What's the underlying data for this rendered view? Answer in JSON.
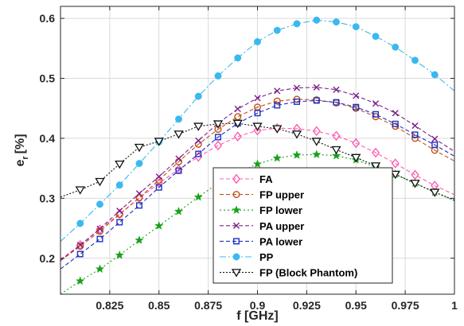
{
  "chart_data": {
    "type": "line",
    "xlabel": "f [GHz]",
    "ylabel": "e",
    "ylabel_sub": "r",
    "ylabel_unit": "[%]",
    "xlim": [
      0.8,
      1.0
    ],
    "ylim": [
      0.14,
      0.62
    ],
    "xticks": [
      0.825,
      0.85,
      0.875,
      0.9,
      0.925,
      0.95,
      0.975,
      1.0
    ],
    "xtick_labels": [
      "0.825",
      "0.85",
      "0.875",
      "0.9",
      "0.925",
      "0.95",
      "0.975",
      "1"
    ],
    "yticks": [
      0.2,
      0.3,
      0.4,
      0.5,
      0.6
    ],
    "ytick_labels": [
      "0.2",
      "0.3",
      "0.4",
      "0.5",
      "0.6"
    ],
    "grid": true,
    "legend_position": "bottom-right",
    "x": [
      0.8,
      0.81,
      0.82,
      0.83,
      0.84,
      0.85,
      0.86,
      0.87,
      0.88,
      0.89,
      0.9,
      0.91,
      0.92,
      0.93,
      0.94,
      0.95,
      0.96,
      0.97,
      0.98,
      0.99,
      1.0
    ],
    "series": [
      {
        "name": "FA",
        "color": "#ff5fb0",
        "dash": "5,3",
        "marker": "diamond",
        "values": [
          0.198,
          0.222,
          0.248,
          0.274,
          0.3,
          0.325,
          0.348,
          0.369,
          0.388,
          0.403,
          0.413,
          0.417,
          0.416,
          0.412,
          0.404,
          0.392,
          0.376,
          0.358,
          0.339,
          0.321,
          0.306
        ]
      },
      {
        "name": "FP upper",
        "color": "#c0501a",
        "dash": "5,3",
        "marker": "circle",
        "values": [
          0.196,
          0.22,
          0.245,
          0.273,
          0.301,
          0.33,
          0.361,
          0.39,
          0.415,
          0.436,
          0.452,
          0.462,
          0.465,
          0.464,
          0.459,
          0.45,
          0.436,
          0.42,
          0.4,
          0.38,
          0.362
        ]
      },
      {
        "name": "FP lower",
        "color": "#1aa01a",
        "dash": "2,3",
        "marker": "star",
        "values": [
          0.14,
          0.162,
          0.182,
          0.205,
          0.23,
          0.254,
          0.278,
          0.302,
          0.325,
          0.343,
          0.357,
          0.367,
          0.372,
          0.373,
          0.371,
          0.364,
          0.352,
          0.34,
          0.325,
          0.31,
          0.296
        ]
      },
      {
        "name": "PA upper",
        "color": "#7a1f8a",
        "dash": "5,3",
        "marker": "x",
        "values": [
          0.196,
          0.222,
          0.249,
          0.279,
          0.308,
          0.336,
          0.366,
          0.396,
          0.425,
          0.449,
          0.467,
          0.479,
          0.484,
          0.485,
          0.481,
          0.471,
          0.458,
          0.442,
          0.421,
          0.399,
          0.378
        ]
      },
      {
        "name": "PA lower",
        "color": "#2030c0",
        "dash": "5,3",
        "marker": "square",
        "values": [
          0.182,
          0.207,
          0.232,
          0.26,
          0.288,
          0.318,
          0.346,
          0.374,
          0.402,
          0.425,
          0.442,
          0.455,
          0.461,
          0.463,
          0.46,
          0.452,
          0.44,
          0.424,
          0.406,
          0.389,
          0.37
        ]
      },
      {
        "name": "PP",
        "color": "#3ab8f0",
        "dash": "8,3,2,3",
        "marker": "dot",
        "values": [
          0.228,
          0.258,
          0.29,
          0.322,
          0.358,
          0.394,
          0.432,
          0.47,
          0.504,
          0.534,
          0.561,
          0.58,
          0.591,
          0.597,
          0.594,
          0.586,
          0.57,
          0.552,
          0.53,
          0.506,
          0.479
        ]
      },
      {
        "name": "FP (Block Phantom)",
        "color": "#111111",
        "dash": "2,2",
        "marker": "triangle-down",
        "values": [
          0.302,
          0.314,
          0.328,
          0.357,
          0.385,
          0.395,
          0.407,
          0.42,
          0.424,
          0.425,
          0.42,
          0.416,
          0.407,
          0.395,
          0.381,
          0.368,
          0.354,
          0.34,
          0.325,
          0.31,
          0.297
        ]
      }
    ]
  }
}
